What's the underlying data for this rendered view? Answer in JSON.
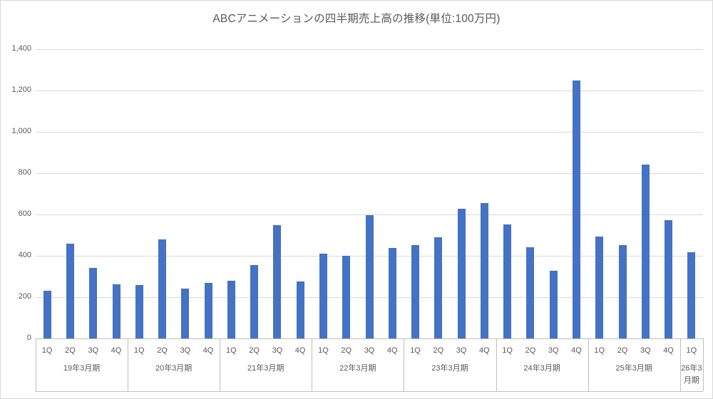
{
  "chart_data": {
    "type": "bar",
    "title": "ABCアニメーションの四半期売上高の推移(単位:100万円)",
    "xlabel": "",
    "ylabel": "",
    "ylim": [
      0,
      1400
    ],
    "ytick_step": 200,
    "ytick_labels": [
      "0",
      "200",
      "400",
      "600",
      "800",
      "1,000",
      "1,200",
      "1,400"
    ],
    "grid": true,
    "legend": "none",
    "categories_note": "two-level category axis: quarters grouped by fiscal year ending March",
    "groups": [
      {
        "label": "19年3月期",
        "quarters": [
          "1Q",
          "2Q",
          "3Q",
          "4Q"
        ],
        "values": [
          230,
          459,
          343,
          262
        ]
      },
      {
        "label": "20年3月期",
        "quarters": [
          "1Q",
          "2Q",
          "3Q",
          "4Q"
        ],
        "values": [
          257,
          480,
          242,
          268
        ]
      },
      {
        "label": "21年3月期",
        "quarters": [
          "1Q",
          "2Q",
          "3Q",
          "4Q"
        ],
        "values": [
          281,
          354,
          547,
          276
        ]
      },
      {
        "label": "22年3月期",
        "quarters": [
          "1Q",
          "2Q",
          "3Q",
          "4Q"
        ],
        "values": [
          412,
          401,
          595,
          437
        ]
      },
      {
        "label": "23年3月期",
        "quarters": [
          "1Q",
          "2Q",
          "3Q",
          "4Q"
        ],
        "values": [
          453,
          491,
          627,
          654
        ]
      },
      {
        "label": "24年3月期",
        "quarters": [
          "1Q",
          "2Q",
          "3Q",
          "4Q"
        ],
        "values": [
          551,
          443,
          326,
          1248
        ]
      },
      {
        "label": "25年3月期",
        "quarters": [
          "1Q",
          "2Q",
          "3Q",
          "4Q"
        ],
        "values": [
          493,
          453,
          840,
          573
        ]
      },
      {
        "label": "26年3月期",
        "quarters": [
          "1Q"
        ],
        "values": [
          418
        ]
      }
    ],
    "colors": {
      "bar": "#4472C4",
      "gridline": "#D9D9D9",
      "axis_line": "#BFBFBF",
      "text": "#595959",
      "background": "#FFFFFF",
      "border": "#D9D9D9"
    }
  }
}
